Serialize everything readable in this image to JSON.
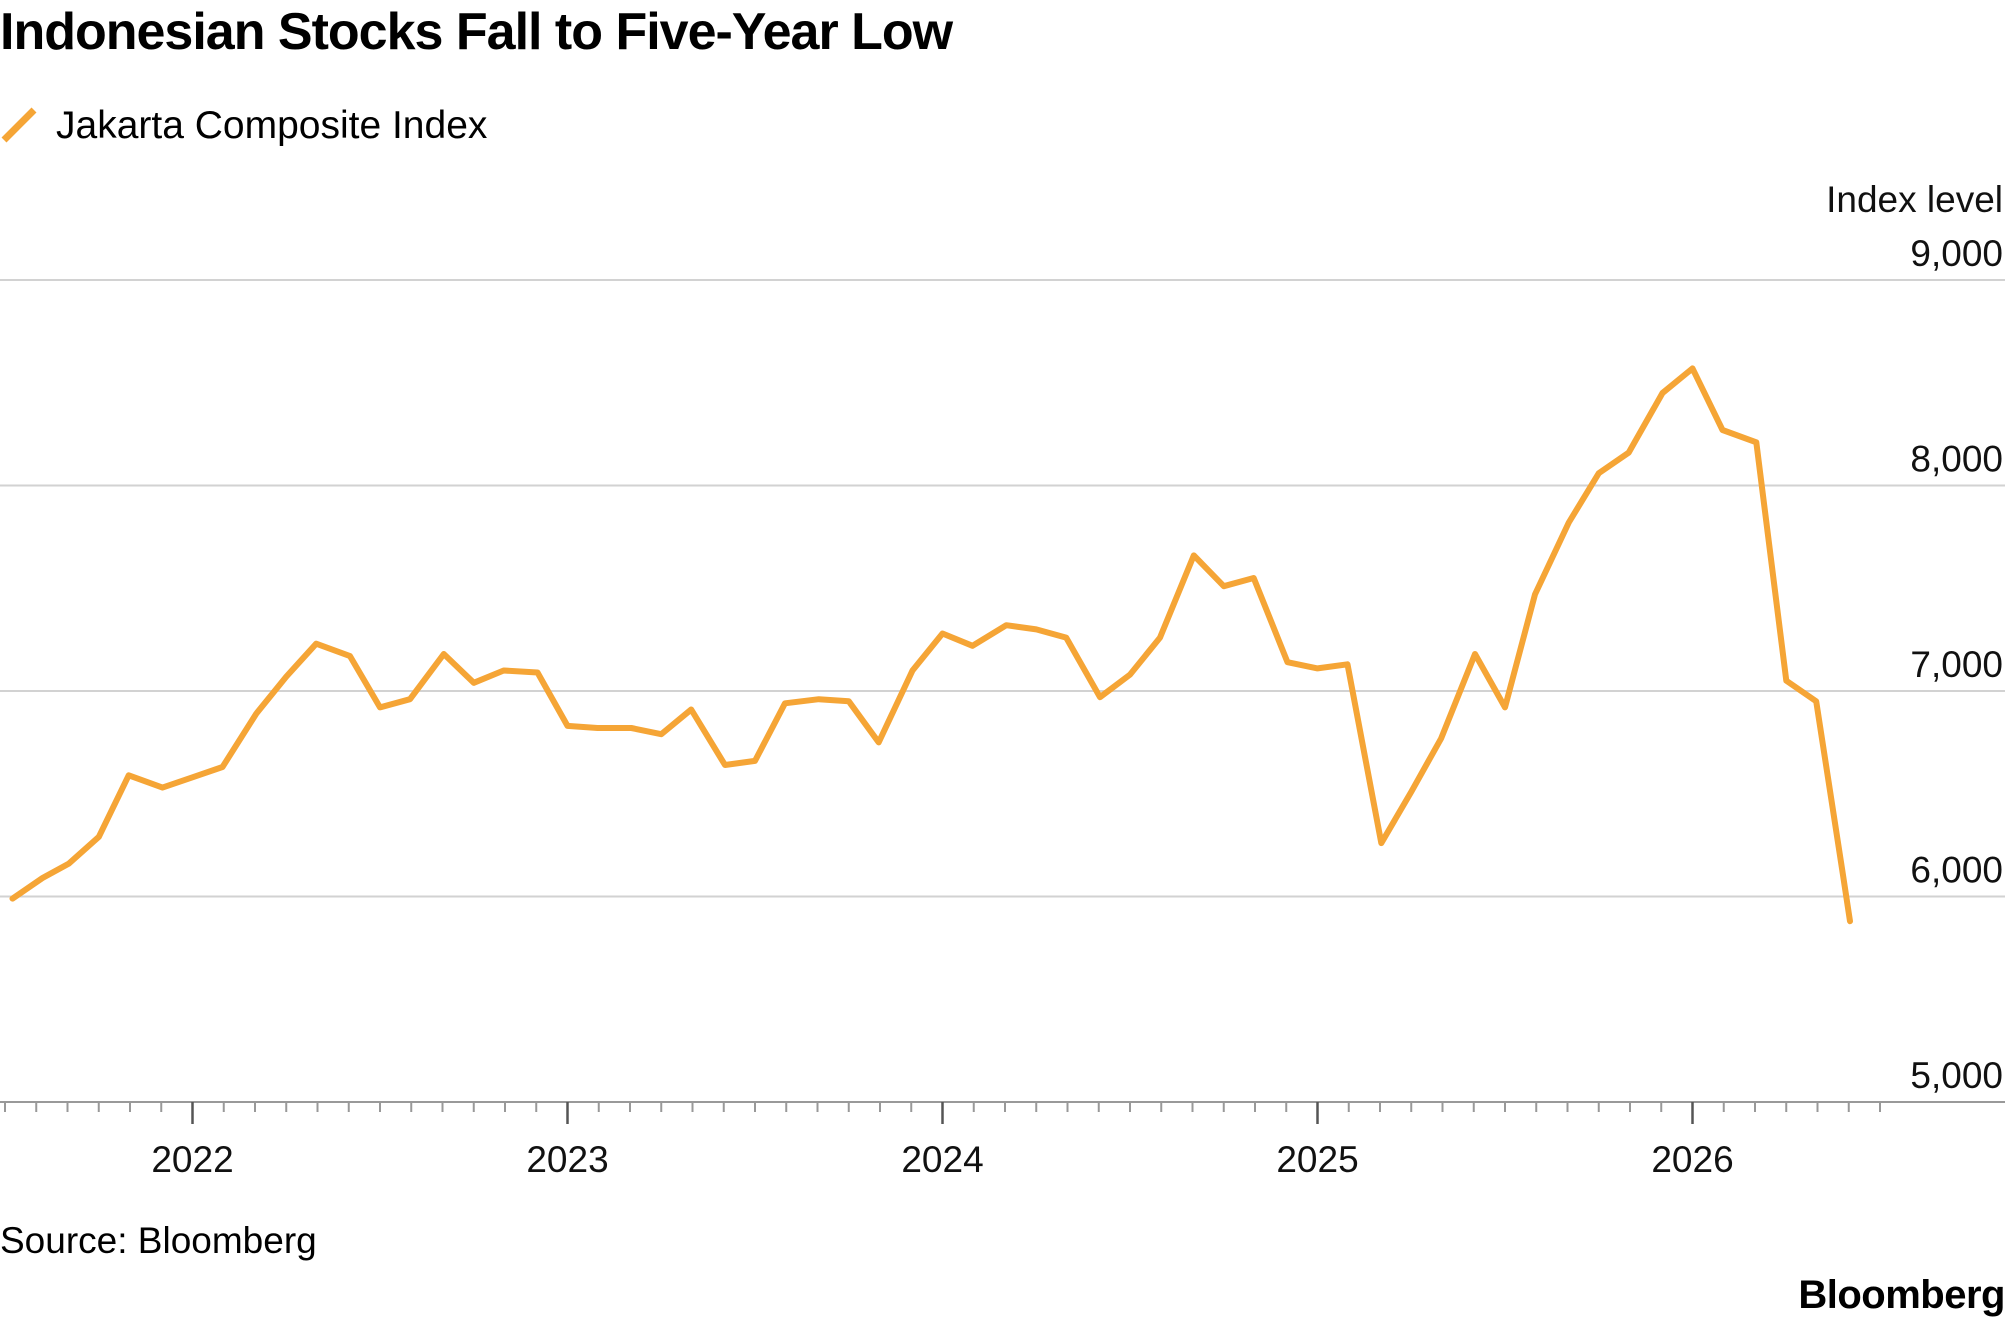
{
  "title": "Indonesian Stocks Fall to Five-Year Low",
  "source": "Source: Bloomberg",
  "brand": "Bloomberg",
  "colors": {
    "series": "#F5A536",
    "grid": "#d2d2d2",
    "axis": "#999999"
  },
  "chart_data": {
    "type": "line",
    "ylabel": "Index level",
    "ylim": [
      5000,
      9000
    ],
    "yticks": [
      5000,
      6000,
      7000,
      8000,
      9000
    ],
    "ytick_labels": [
      "5,000",
      "6,000",
      "7,000",
      "8,000",
      "9,000"
    ],
    "xlim": [
      2021.5,
      2026.5
    ],
    "xticks": [
      2022,
      2023,
      2024,
      2025,
      2026
    ],
    "xtick_labels": [
      "2022",
      "2023",
      "2024",
      "2025",
      "2026"
    ],
    "grid": true,
    "legend_position": "top-left",
    "series": [
      {
        "name": "Jakarta Composite Index",
        "x": [
          2021.52,
          2021.6,
          2021.67,
          2021.75,
          2021.83,
          2021.92,
          2022.0,
          2022.08,
          2022.17,
          2022.25,
          2022.33,
          2022.42,
          2022.5,
          2022.58,
          2022.67,
          2022.75,
          2022.83,
          2022.92,
          2023.0,
          2023.08,
          2023.17,
          2023.25,
          2023.33,
          2023.42,
          2023.5,
          2023.58,
          2023.67,
          2023.75,
          2023.83,
          2023.92,
          2024.0,
          2024.08,
          2024.17,
          2024.25,
          2024.33,
          2024.42,
          2024.5,
          2024.58,
          2024.67,
          2024.75,
          2024.83,
          2024.92,
          2025.0,
          2025.08,
          2025.17,
          2025.25,
          2025.33,
          2025.42,
          2025.5,
          2025.58,
          2025.67,
          2025.75,
          2025.83,
          2025.92,
          2026.0,
          2026.08,
          2026.17,
          2026.25,
          2026.33,
          2026.4,
          2026.42
        ],
        "values": [
          5990,
          6090,
          6160,
          6290,
          6590,
          6530,
          6580,
          6630,
          6890,
          7070,
          7230,
          7170,
          6920,
          6960,
          7180,
          7040,
          7100,
          7090,
          6830,
          6820,
          6820,
          6790,
          6910,
          6640,
          6660,
          6940,
          6960,
          6950,
          6750,
          7100,
          7280,
          7220,
          7320,
          7300,
          7260,
          6970,
          7080,
          7260,
          7660,
          7510,
          7550,
          7140,
          7110,
          7130,
          6260,
          6510,
          6770,
          7180,
          6920,
          7470,
          7820,
          8060,
          8160,
          8450,
          8570,
          8270,
          8210,
          7050,
          6950,
          6120,
          5880
        ]
      }
    ]
  }
}
